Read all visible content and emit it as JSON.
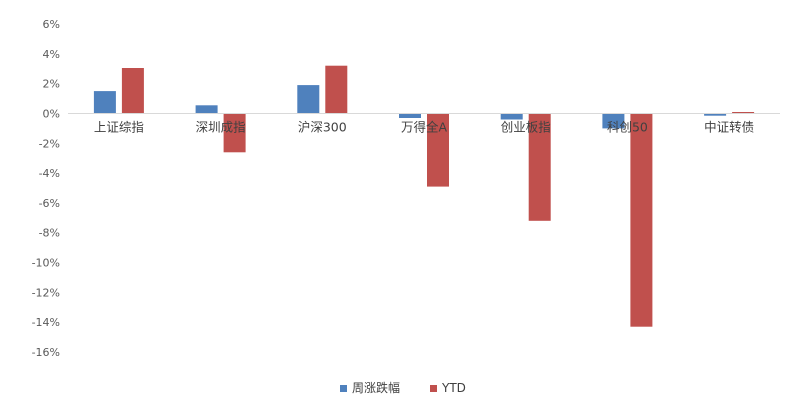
{
  "chart_data": {
    "type": "bar",
    "title": "",
    "xlabel": "",
    "ylabel": "",
    "categories": [
      "上证综指",
      "深圳成指",
      "沪深300",
      "万得全A",
      "创业板指",
      "科创50",
      "中证转债"
    ],
    "series": [
      {
        "name": "周涨跌幅",
        "color": "#4f81bd",
        "values": [
          1.5,
          0.55,
          1.9,
          -0.3,
          -0.4,
          -1.0,
          -0.15
        ]
      },
      {
        "name": "YTD",
        "color": "#c0504d",
        "values": [
          3.05,
          -2.6,
          3.2,
          -4.9,
          -7.2,
          -14.3,
          0.1
        ]
      }
    ],
    "ylim": [
      -16,
      6
    ],
    "yticks": [
      6,
      4,
      2,
      0,
      -2,
      -4,
      -6,
      -8,
      -10,
      -12,
      -14,
      -16
    ],
    "ytick_labels": [
      "6%",
      "4%",
      "2%",
      "0%",
      "-2%",
      "-4%",
      "-6%",
      "-8%",
      "-10%",
      "-12%",
      "-14%",
      "-16%"
    ],
    "grid": false,
    "legend": "bottom-center"
  }
}
